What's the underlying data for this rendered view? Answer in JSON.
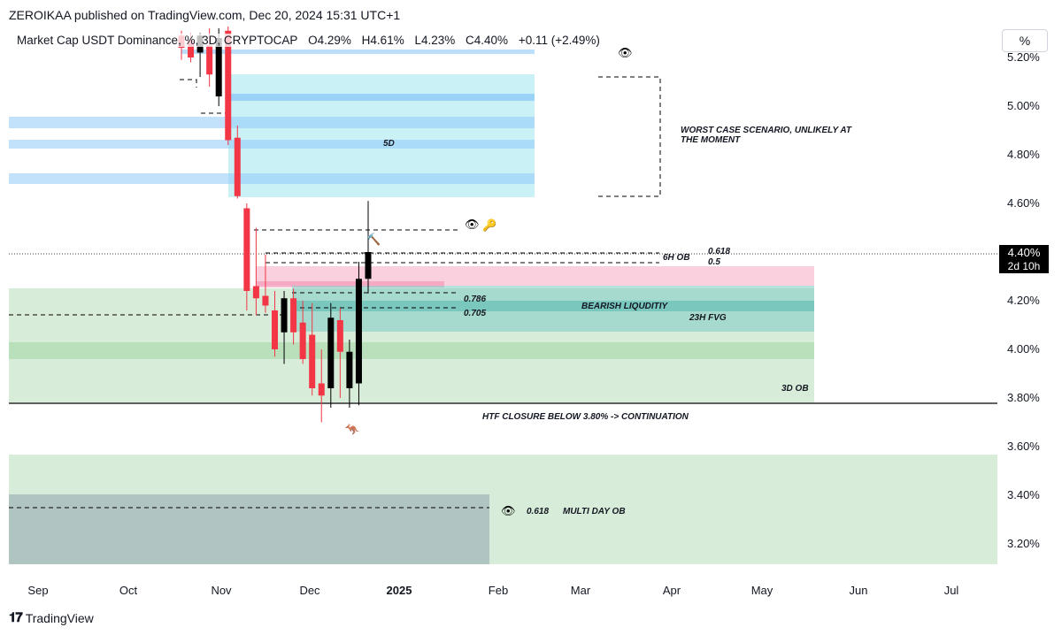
{
  "header": {
    "publisher_line": "ZEROIKAA published on TradingView.com, Dec 20, 2024 15:31 UTC+1"
  },
  "legend": {
    "symbol": "Market Cap USDT Dominance, %, 3D, CRYPTOCAP",
    "open": "O4.29%",
    "high": "H4.61%",
    "low": "L4.23%",
    "close": "C4.40%",
    "change": "+0.11 (+2.49%)"
  },
  "scale_button": "%",
  "current_price": {
    "label": "4.40%",
    "countdown": "2d 10h"
  },
  "footer": {
    "brand": "TradingView"
  },
  "colors": {
    "up": "#000000",
    "down": "#f23645",
    "cyan_zone": "#b2ebf2",
    "blue_band": "#90caf9",
    "green_zone": "#c8e6c9",
    "pink_zone": "#f8bbd0",
    "teal_fvg": "#80cbc4",
    "grey_ob": "#90a4ae"
  },
  "chart_data": {
    "type": "candlestick",
    "yaxis": {
      "ticks": [
        "5.20%",
        "5.00%",
        "4.80%",
        "4.60%",
        "4.40%",
        "4.20%",
        "4.00%",
        "3.80%",
        "3.60%",
        "3.40%",
        "3.20%"
      ],
      "tick_values": [
        5.2,
        5.0,
        4.8,
        4.6,
        4.4,
        4.2,
        4.0,
        3.8,
        3.6,
        3.4,
        3.2
      ],
      "range": [
        3.12,
        5.27
      ]
    },
    "xaxis": {
      "labels": [
        "Sep",
        "Oct",
        "Nov",
        "Dec",
        "2025",
        "Feb",
        "Mar",
        "Apr",
        "May",
        "Jun",
        "Jul"
      ],
      "bold": [
        "2025"
      ]
    },
    "candles": [
      {
        "o": 5.29,
        "h": 5.31,
        "l": 5.19,
        "c": 5.24
      },
      {
        "o": 5.27,
        "h": 5.3,
        "l": 5.18,
        "c": 5.2
      },
      {
        "o": 5.22,
        "h": 5.3,
        "l": 5.12,
        "c": 5.29
      },
      {
        "o": 5.25,
        "h": 5.32,
        "l": 5.08,
        "c": 5.13
      },
      {
        "o": 5.04,
        "h": 5.32,
        "l": 5.0,
        "c": 5.28
      },
      {
        "o": 5.31,
        "h": 5.35,
        "l": 4.84,
        "c": 4.86
      },
      {
        "o": 4.87,
        "h": 4.92,
        "l": 4.62,
        "c": 4.63
      },
      {
        "o": 4.58,
        "h": 4.6,
        "l": 4.16,
        "c": 4.24
      },
      {
        "o": 4.26,
        "h": 4.5,
        "l": 4.14,
        "c": 4.21
      },
      {
        "o": 4.22,
        "h": 4.39,
        "l": 4.15,
        "c": 4.18
      },
      {
        "o": 4.16,
        "h": 4.24,
        "l": 3.97,
        "c": 4.0
      },
      {
        "o": 4.07,
        "h": 4.24,
        "l": 3.94,
        "c": 4.21
      },
      {
        "o": 4.21,
        "h": 4.25,
        "l": 4.02,
        "c": 4.07
      },
      {
        "o": 4.11,
        "h": 4.2,
        "l": 3.94,
        "c": 3.96
      },
      {
        "o": 4.06,
        "h": 4.19,
        "l": 3.81,
        "c": 3.84
      },
      {
        "o": 3.86,
        "h": 4.0,
        "l": 3.7,
        "c": 3.81
      },
      {
        "o": 3.84,
        "h": 4.19,
        "l": 3.76,
        "c": 4.13
      },
      {
        "o": 4.12,
        "h": 4.17,
        "l": 3.8,
        "c": 3.99
      },
      {
        "o": 3.84,
        "h": 4.04,
        "l": 3.76,
        "c": 3.99
      },
      {
        "o": 3.86,
        "h": 4.36,
        "l": 3.77,
        "c": 4.29
      },
      {
        "o": 4.29,
        "h": 4.61,
        "l": 4.23,
        "c": 4.4
      }
    ],
    "current_value": 4.4,
    "annotations": [
      "5D",
      "WORST CASE SCENARIO, UNLIKELY AT",
      "THE MOMENT",
      "6H OB",
      "0.618",
      "0.5",
      "0.786",
      "0.705",
      "BEARISH LIQUDITIY",
      "23H FVG",
      "3D OB",
      "HTF CLOSURE BELOW 3.80% -> CONTINUATION",
      "0.618",
      "MULTI DAY OB"
    ]
  }
}
